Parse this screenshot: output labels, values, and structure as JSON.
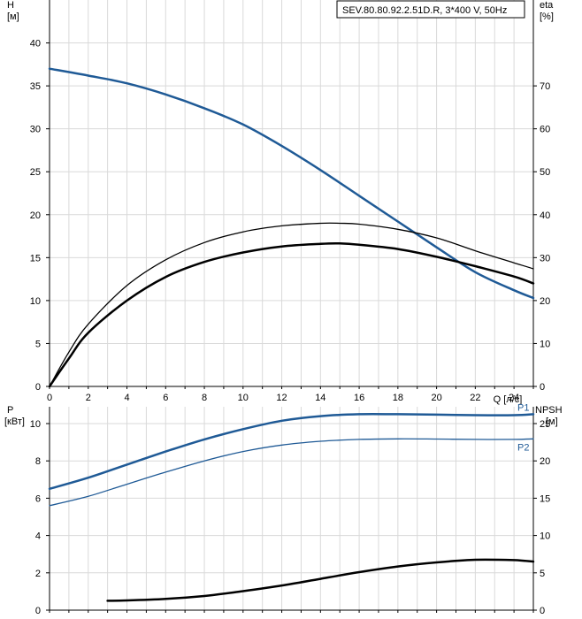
{
  "colors": {
    "blue": "#1f5a96",
    "black": "#000000",
    "grid": "#d9d9d9"
  },
  "chart_data": [
    {
      "type": "line",
      "title": "SEV.80.80.92.2.51D.R, 3*400 V, 50Hz",
      "xlabel": "Q [л/с]",
      "ylabel_left": {
        "name": "H",
        "unit": "[м]"
      },
      "ylabel_right": {
        "name": "eta",
        "unit": "[%]"
      },
      "xlim": [
        0,
        25
      ],
      "ylim_left": [
        0,
        45
      ],
      "ylim_right": [
        0,
        90
      ],
      "x_ticks": [
        "0",
        "2",
        "4",
        "6",
        "8",
        "10",
        "12",
        "14",
        "16",
        "18",
        "20",
        "22",
        "24"
      ],
      "y_ticks_left": [
        "0",
        "5",
        "10",
        "15",
        "20",
        "25",
        "30",
        "35",
        "40"
      ],
      "y_ticks_right": [
        "0",
        "10",
        "20",
        "30",
        "40",
        "50",
        "60",
        "70"
      ],
      "grid": true,
      "series": [
        {
          "axis": "left",
          "color": "#1f5a96",
          "width": 2.5,
          "x": [
            0,
            2,
            4,
            6,
            8,
            10,
            12,
            14,
            16,
            18,
            20,
            22,
            24,
            25
          ],
          "y": [
            37,
            36.2,
            35.3,
            34.0,
            32.4,
            30.5,
            28.0,
            25.2,
            22.2,
            19.2,
            16.2,
            13.3,
            11.2,
            10.3
          ]
        },
        {
          "axis": "right",
          "color": "#000000",
          "width": 1.3,
          "x": [
            0,
            1,
            2,
            4,
            6,
            8,
            10,
            12,
            14,
            15,
            16,
            18,
            20,
            22,
            24,
            25
          ],
          "y": [
            0,
            8,
            14.5,
            23.5,
            29.5,
            33.5,
            36.0,
            37.4,
            38.0,
            38.0,
            37.8,
            36.6,
            34.6,
            31.6,
            28.8,
            27.4
          ]
        },
        {
          "axis": "right",
          "color": "#000000",
          "width": 2.5,
          "x": [
            0,
            1,
            2,
            4,
            6,
            8,
            10,
            12,
            14,
            15,
            16,
            18,
            20,
            22,
            24,
            25
          ],
          "y": [
            0,
            6.5,
            12.5,
            20.0,
            25.5,
            29.0,
            31.2,
            32.6,
            33.2,
            33.3,
            33.0,
            32.0,
            30.2,
            28.0,
            25.6,
            24.0
          ]
        }
      ]
    },
    {
      "type": "line",
      "xlabel": "",
      "ylabel_left": {
        "name": "P",
        "unit": "[кВт]"
      },
      "ylabel_right": {
        "name": "NPSH",
        "unit": "[м]"
      },
      "xlim": [
        0,
        25
      ],
      "ylim_left": [
        0,
        10.9
      ],
      "ylim_right": [
        0,
        27.25
      ],
      "y_ticks_left": [
        "0",
        "2",
        "4",
        "6",
        "8",
        "10"
      ],
      "y_ticks_right": [
        "0",
        "5",
        "10",
        "15",
        "20",
        "25"
      ],
      "grid": true,
      "series": [
        {
          "name": "P1",
          "axis": "left",
          "color": "#1f5a96",
          "width": 2.5,
          "x": [
            0,
            2,
            4,
            6,
            8,
            10,
            12,
            14,
            16,
            18,
            20,
            22,
            24,
            25
          ],
          "y": [
            6.5,
            7.1,
            7.8,
            8.5,
            9.15,
            9.7,
            10.15,
            10.4,
            10.5,
            10.5,
            10.48,
            10.45,
            10.45,
            10.5
          ]
        },
        {
          "name": "P2",
          "axis": "left",
          "color": "#1f5a96",
          "width": 1.3,
          "x": [
            0,
            2,
            4,
            6,
            8,
            10,
            12,
            14,
            16,
            18,
            20,
            22,
            24,
            25
          ],
          "y": [
            5.6,
            6.1,
            6.75,
            7.4,
            8.0,
            8.5,
            8.85,
            9.05,
            9.15,
            9.18,
            9.17,
            9.15,
            9.15,
            9.18
          ]
        },
        {
          "axis": "right",
          "color": "#000000",
          "width": 2.5,
          "x": [
            3,
            4,
            6,
            8,
            10,
            12,
            14,
            16,
            18,
            20,
            22,
            24,
            25
          ],
          "y": [
            1.25,
            1.3,
            1.5,
            1.9,
            2.55,
            3.3,
            4.2,
            5.1,
            5.85,
            6.4,
            6.75,
            6.7,
            6.5
          ]
        }
      ]
    }
  ]
}
